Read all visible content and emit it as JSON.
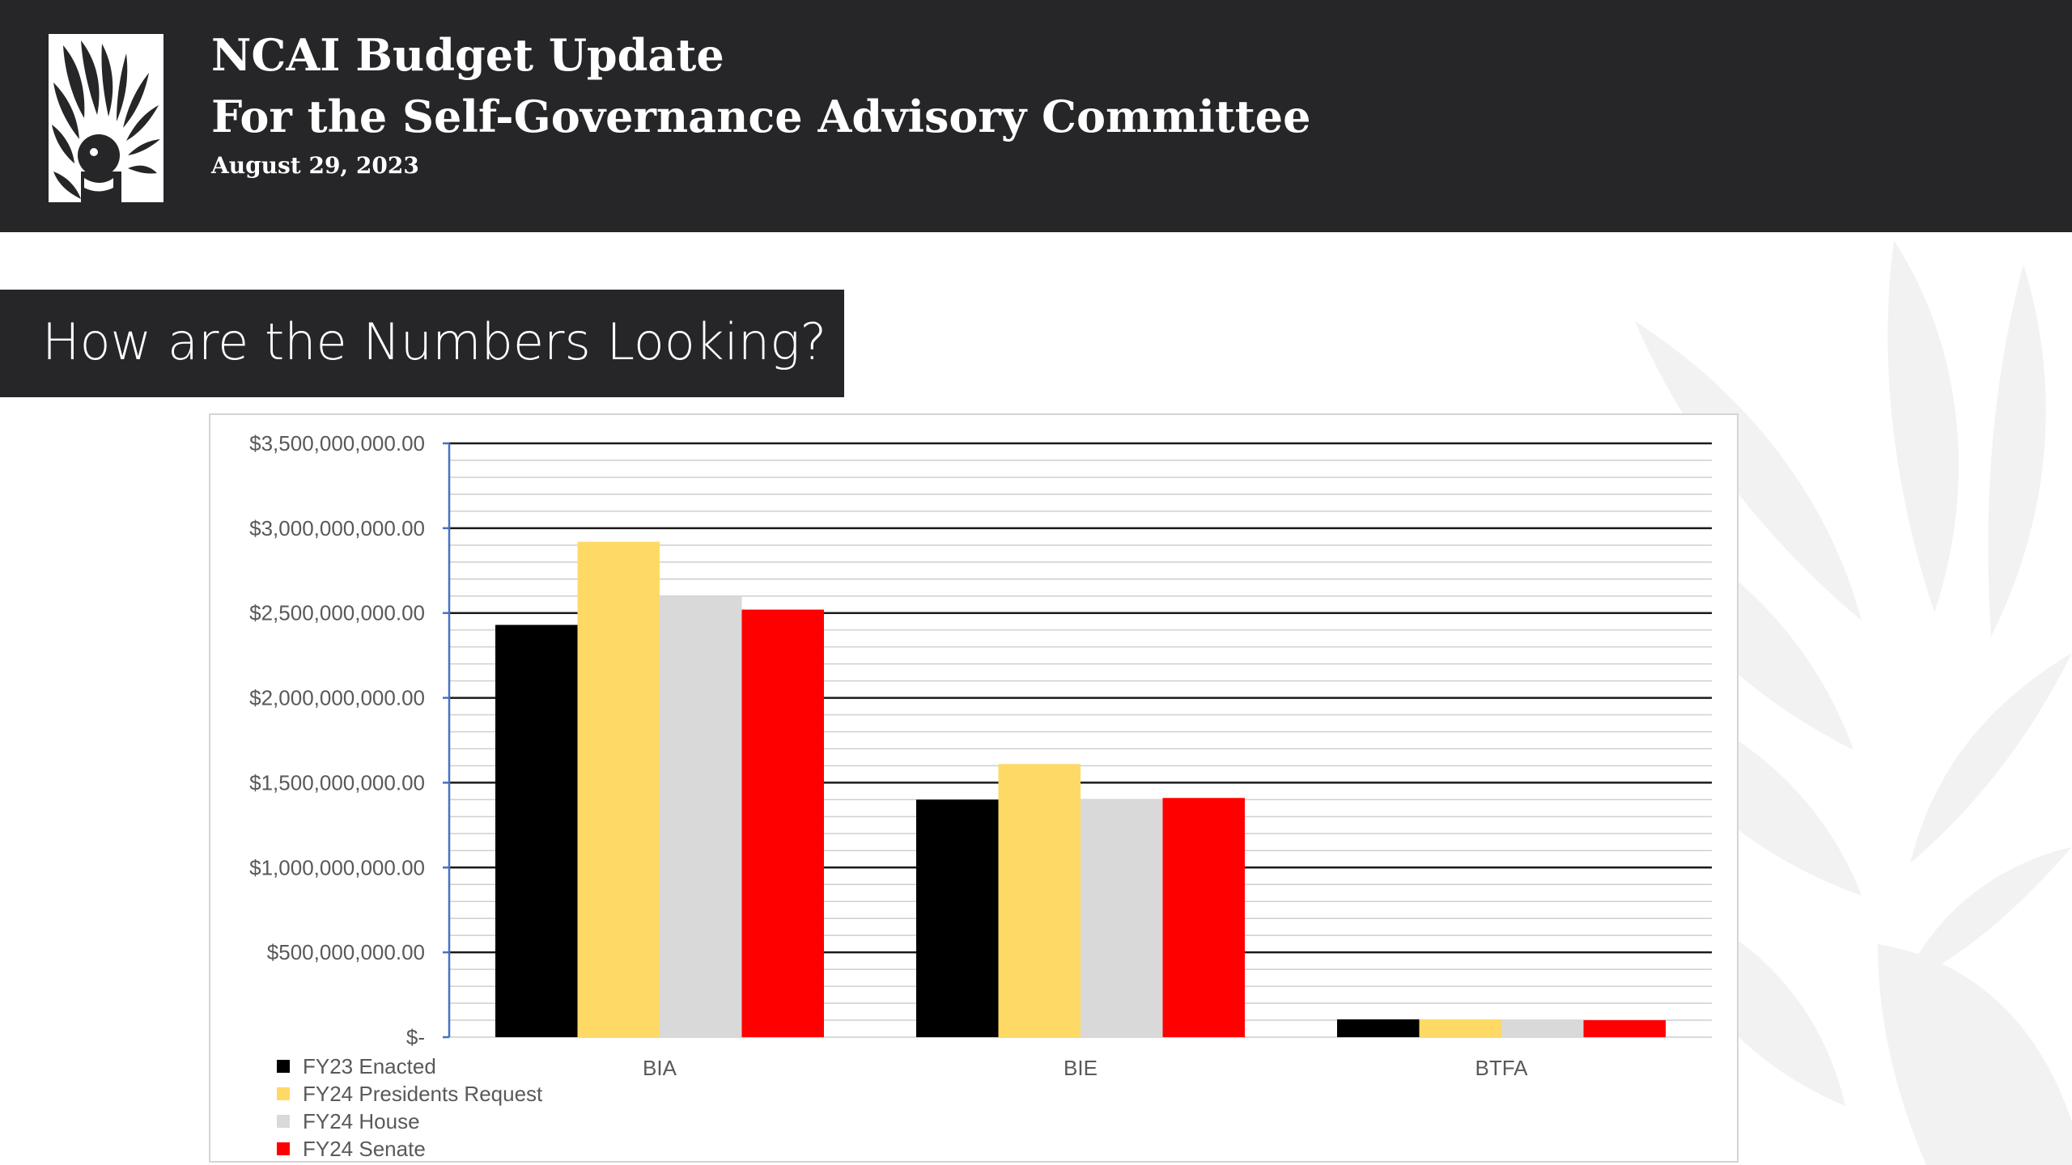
{
  "header": {
    "line1": "NCAI Budget Update",
    "line2": "For the Self-Governance Advisory Committee",
    "date": "August 29, 2023",
    "logo_icon": "ncai-headdress-logo-icon"
  },
  "section": {
    "title": "How are the Numbers Looking?"
  },
  "colors": {
    "header_bg": "#262528",
    "fy23_enacted": "#000000",
    "fy24_presidents_request": "#FFD966",
    "fy24_house": "#D9D9D9",
    "fy24_senate": "#FF0000"
  },
  "chart_data": {
    "type": "bar",
    "categories": [
      "BIA",
      "BIE",
      "BTFA"
    ],
    "series": [
      {
        "name": "FY23 Enacted",
        "color": "#000000",
        "values": [
          2430000000,
          1400000000,
          105000000
        ]
      },
      {
        "name": "FY24 Presidents Request",
        "color": "#FFD966",
        "values": [
          2920000000,
          1610000000,
          105000000
        ]
      },
      {
        "name": "FY24 House",
        "color": "#D9D9D9",
        "values": [
          2600000000,
          1400000000,
          100000000
        ]
      },
      {
        "name": "FY24 Senate",
        "color": "#FF0000",
        "values": [
          2520000000,
          1410000000,
          100000000
        ]
      }
    ],
    "ylim": [
      0,
      3500000000
    ],
    "major_step": 500000000,
    "minor_step": 100000000,
    "y_tick_labels": [
      "$-",
      "$500,000,000.00",
      "$1,000,000,000.00",
      "$1,500,000,000.00",
      "$2,000,000,000.00",
      "$2,500,000,000.00",
      "$3,000,000,000.00",
      "$3,500,000,000.00"
    ],
    "grid": true,
    "legend_position": "bottom-left",
    "title": "",
    "xlabel": "",
    "ylabel": ""
  }
}
